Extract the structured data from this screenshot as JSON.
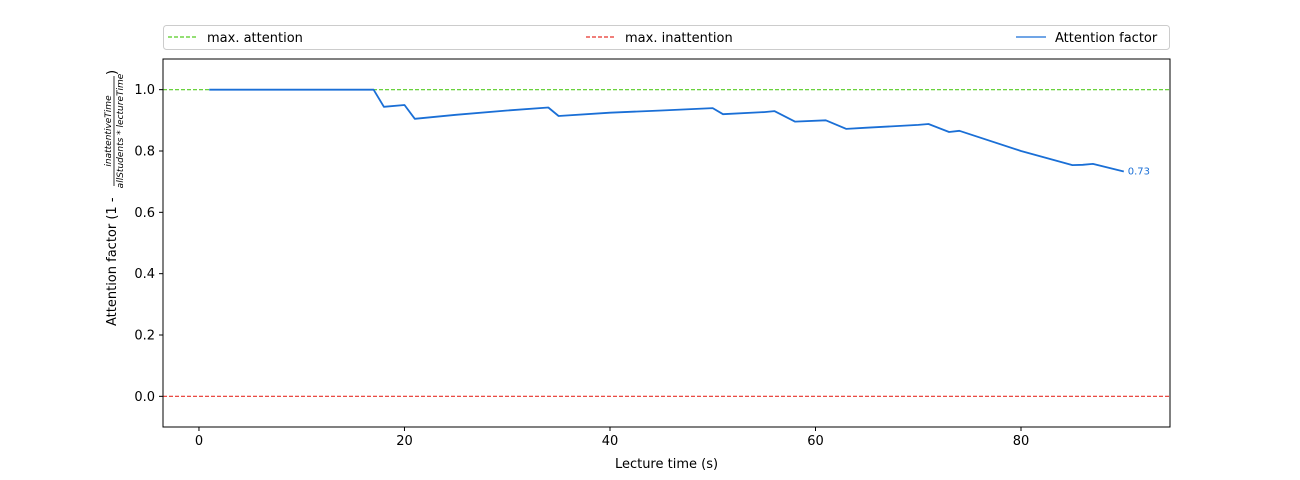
{
  "chart_data": {
    "type": "line",
    "xlabel": "Lecture time (s)",
    "ylabel": {
      "prefix": "Attention factor (1 - ",
      "numerator": "inattentiveTime",
      "denominator": "allStudents * lectureTime",
      "suffix": ")"
    },
    "xlim": [
      -3.5,
      94.5
    ],
    "ylim": [
      -0.1,
      1.1
    ],
    "x_ticks": [
      0,
      20,
      40,
      60,
      80
    ],
    "y_ticks": [
      0.0,
      0.2,
      0.4,
      0.6,
      0.8,
      1.0
    ],
    "y_tick_labels": [
      "0.0",
      "0.2",
      "0.4",
      "0.6",
      "0.8",
      "1.0"
    ],
    "grid": false,
    "legend_placement": "top, spanning width",
    "reference_lines": [
      {
        "name": "max. attention",
        "y": 1.0,
        "color": "#55cc22",
        "style": "dashed"
      },
      {
        "name": "max. inattention",
        "y": 0.0,
        "color": "#e8332a",
        "style": "dashed"
      }
    ],
    "series": [
      {
        "name": "Attention factor",
        "color": "#1a6fd6",
        "end_label": "0.73",
        "x": [
          1,
          17,
          18,
          20,
          21,
          25,
          30,
          34,
          35,
          40,
          45,
          50,
          51,
          55,
          56,
          58,
          61,
          63,
          65,
          70,
          71,
          73,
          74,
          80,
          85,
          86,
          87,
          90
        ],
        "y": [
          1.0,
          1.0,
          0.944,
          0.95,
          0.905,
          0.918,
          0.932,
          0.942,
          0.914,
          0.925,
          0.932,
          0.94,
          0.92,
          0.927,
          0.93,
          0.896,
          0.9,
          0.872,
          0.876,
          0.885,
          0.888,
          0.862,
          0.866,
          0.8,
          0.754,
          0.755,
          0.758,
          0.733
        ]
      }
    ]
  }
}
